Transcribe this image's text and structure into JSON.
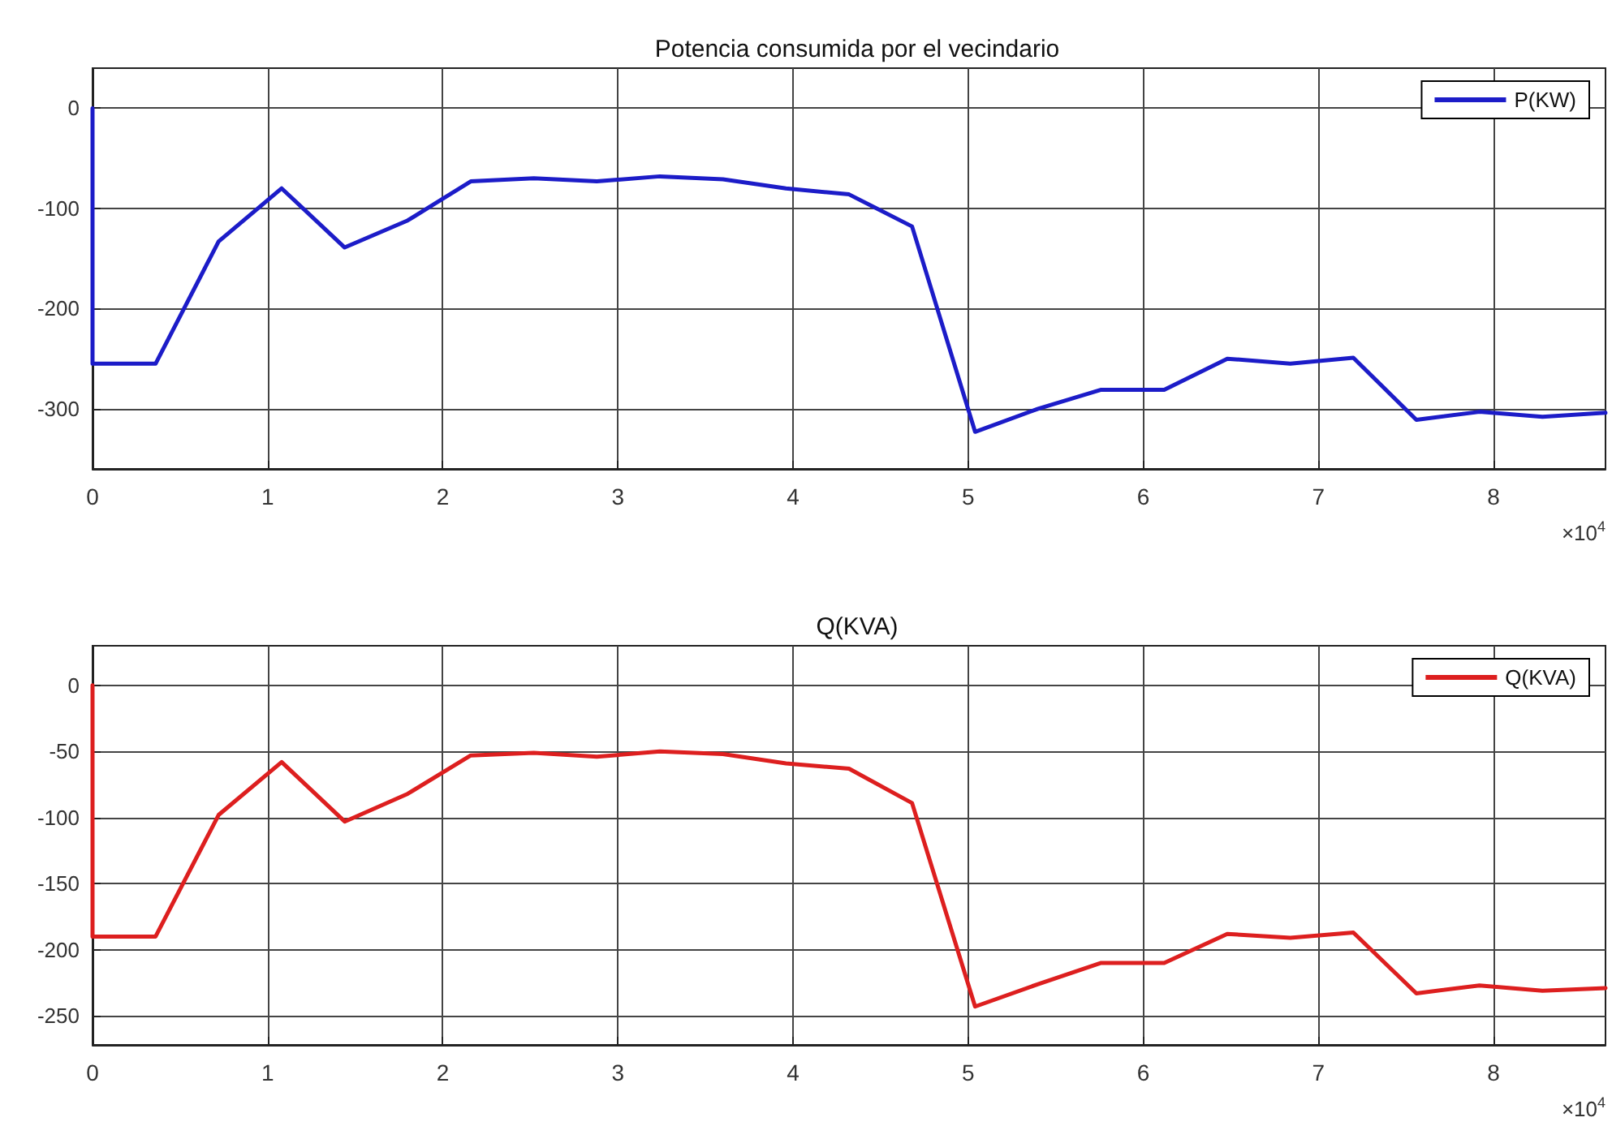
{
  "chart_data": [
    {
      "type": "line",
      "title": "Potencia consumida por el vecindario",
      "annotations": [
        "×10$^{4}$"
      ],
      "xlim": [
        0,
        8.64
      ],
      "xticks": [
        0,
        1,
        2,
        3,
        4,
        5,
        6,
        7,
        8
      ],
      "ylim": [
        -360,
        40
      ],
      "yticks": [
        -300,
        -200,
        -100,
        0
      ],
      "grid": true,
      "legend": "top right",
      "series": [
        {
          "name": "P(KW)",
          "color": "#1c1cc8",
          "x": [
            0,
            0,
            0.36,
            0.72,
            1.08,
            1.44,
            1.8,
            2.16,
            2.52,
            2.88,
            3.24,
            3.6,
            3.96,
            4.32,
            4.68,
            5.04,
            5.4,
            5.76,
            6.12,
            6.48,
            6.84,
            7.2,
            7.56,
            7.92,
            8.28,
            8.64
          ],
          "values": [
            0,
            -255,
            -255,
            -133,
            -80,
            -139,
            -112,
            -73,
            -70,
            -73,
            -68,
            -71,
            -80,
            -86,
            -118,
            -323,
            -300,
            -281,
            -281,
            -250,
            -255,
            -249,
            -311,
            -303,
            -308,
            -304
          ]
        }
      ]
    },
    {
      "type": "line",
      "title": "Q(KVA)",
      "annotations": [
        "×10$^{4}$"
      ],
      "xlim": [
        0,
        8.64
      ],
      "xticks": [
        0,
        1,
        2,
        3,
        4,
        5,
        6,
        7,
        8
      ],
      "ylim": [
        -272,
        30
      ],
      "yticks": [
        -250,
        -200,
        -150,
        -100,
        -50,
        0
      ],
      "grid": true,
      "legend": "top right",
      "series": [
        {
          "name": "Q(KVA)",
          "color": "#dd1f1f",
          "x": [
            0,
            0,
            0.36,
            0.72,
            1.08,
            1.44,
            1.8,
            2.16,
            2.52,
            2.88,
            3.24,
            3.6,
            3.96,
            4.32,
            4.68,
            5.04,
            5.4,
            5.76,
            6.12,
            6.48,
            6.84,
            7.2,
            7.56,
            7.92,
            8.28,
            8.64
          ],
          "values": [
            0,
            -190,
            -190,
            -98,
            -58,
            -103,
            -82,
            -53,
            -51,
            -54,
            -50,
            -52,
            -59,
            -63,
            -89,
            -243,
            -226,
            -210,
            -210,
            -188,
            -191,
            -187,
            -233,
            -227,
            -231,
            -229
          ]
        }
      ]
    }
  ]
}
